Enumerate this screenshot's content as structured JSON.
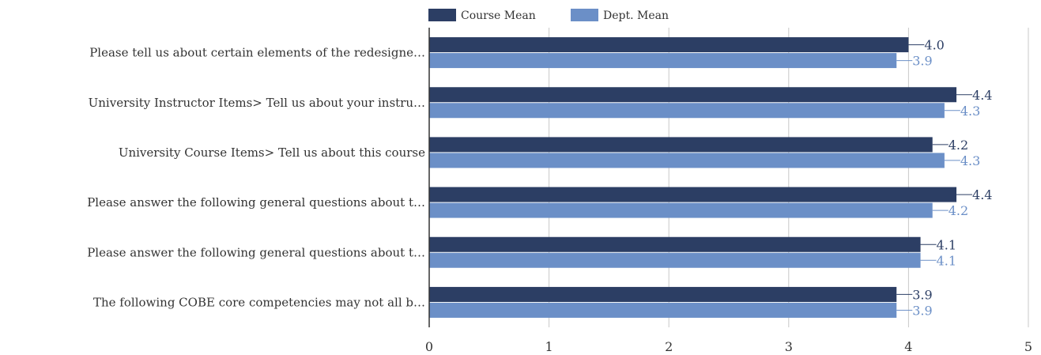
{
  "chart_data": {
    "type": "bar",
    "orientation": "horizontal",
    "categories": [
      "Please tell us about certain elements of the redesigne…",
      "University Instructor Items> Tell us about your instru…",
      "University Course Items> Tell us about this course",
      "Please answer the following general questions about t…",
      "Please answer the following general questions about t…",
      "The following COBE core competencies may not all b…"
    ],
    "series": [
      {
        "name": "Course Mean",
        "color": "#2c3e64",
        "values": [
          4.0,
          4.4,
          4.2,
          4.4,
          4.1,
          3.9
        ],
        "labels": [
          "4.0",
          "4.4",
          "4.2",
          "4.4",
          "4.1",
          "3.9"
        ]
      },
      {
        "name": "Dept. Mean",
        "color": "#6b8fc7",
        "values": [
          3.9,
          4.3,
          4.3,
          4.2,
          4.1,
          3.9
        ],
        "labels": [
          "3.9",
          "4.3",
          "4.3",
          "4.2",
          "4.1",
          "3.9"
        ]
      }
    ],
    "xlim": [
      0,
      5
    ],
    "xticks": [
      "0",
      "1",
      "2",
      "3",
      "4",
      "5"
    ],
    "grid": true,
    "legend": "top"
  }
}
